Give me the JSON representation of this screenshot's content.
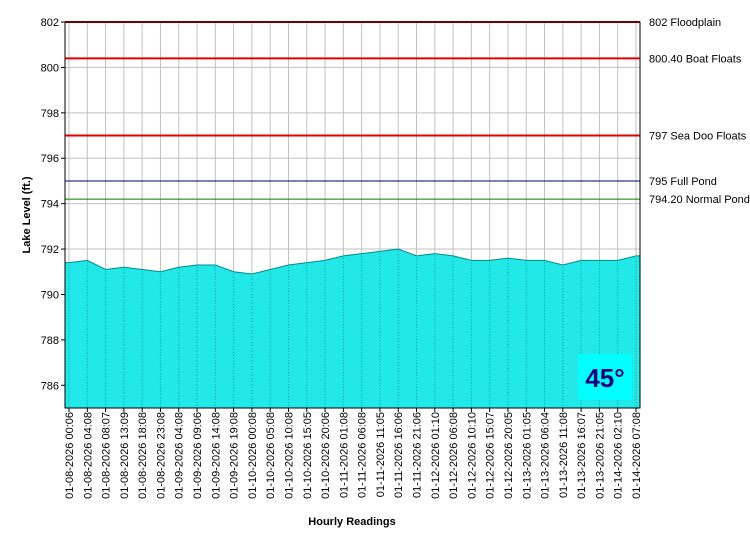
{
  "chart_data": {
    "type": "area",
    "ylabel": "Lake Level (ft.)",
    "xlabel": "Hourly Readings",
    "badge": "45°",
    "categories": [
      "01-08-2026 00:06",
      "01-08-2026 04:08",
      "01-08-2026 08:07",
      "01-08-2026 13:09",
      "01-08-2026 18:08",
      "01-08-2026 23:08",
      "01-09-2026 04:08",
      "01-09-2026 09:06",
      "01-09-2026 14:08",
      "01-09-2026 19:08",
      "01-10-2026 00:08",
      "01-10-2026 05:08",
      "01-10-2026 10:08",
      "01-10-2026 15:05",
      "01-10-2026 20:06",
      "01-11-2026 01:08",
      "01-11-2026 06:08",
      "01-11-2026 11:05",
      "01-11-2026 16:06",
      "01-11-2026 21:06",
      "01-12-2026 01:10",
      "01-12-2026 06:08",
      "01-12-2026 10:10",
      "01-12-2026 15:07",
      "01-12-2026 20:05",
      "01-13-2026 01:05",
      "01-13-2026 06:04",
      "01-13-2026 11:08",
      "01-13-2026 16:07",
      "01-13-2026 21:05",
      "01-14-2026 02:10",
      "01-14-2026 07:08"
    ],
    "values": [
      791.4,
      791.5,
      791.1,
      791.2,
      791.1,
      791.0,
      791.2,
      791.3,
      791.3,
      791.0,
      790.9,
      791.1,
      791.3,
      791.4,
      791.5,
      791.7,
      791.8,
      791.9,
      792.0,
      791.7,
      791.8,
      791.7,
      791.5,
      791.5,
      791.6,
      791.5,
      791.5,
      791.3,
      791.5,
      791.5,
      791.5,
      791.7
    ],
    "color": "#22e8e8",
    "ylim": [
      785,
      802
    ],
    "yticks": [
      786,
      788,
      790,
      792,
      794,
      796,
      798,
      800,
      802
    ],
    "grid": true,
    "reference_lines": [
      {
        "value": 802,
        "label": "802 Floodplain",
        "color": "#e00000"
      },
      {
        "value": 800.4,
        "label": "800.40 Boat Floats",
        "color": "#e00000"
      },
      {
        "value": 797,
        "label": "797 Sea Doo Floats",
        "color": "#e00000"
      },
      {
        "value": 795,
        "label": "795 Full Pond",
        "color": "#000080"
      },
      {
        "value": 794.2,
        "label": "794.20 Normal Pond",
        "color": "#008000"
      }
    ]
  }
}
